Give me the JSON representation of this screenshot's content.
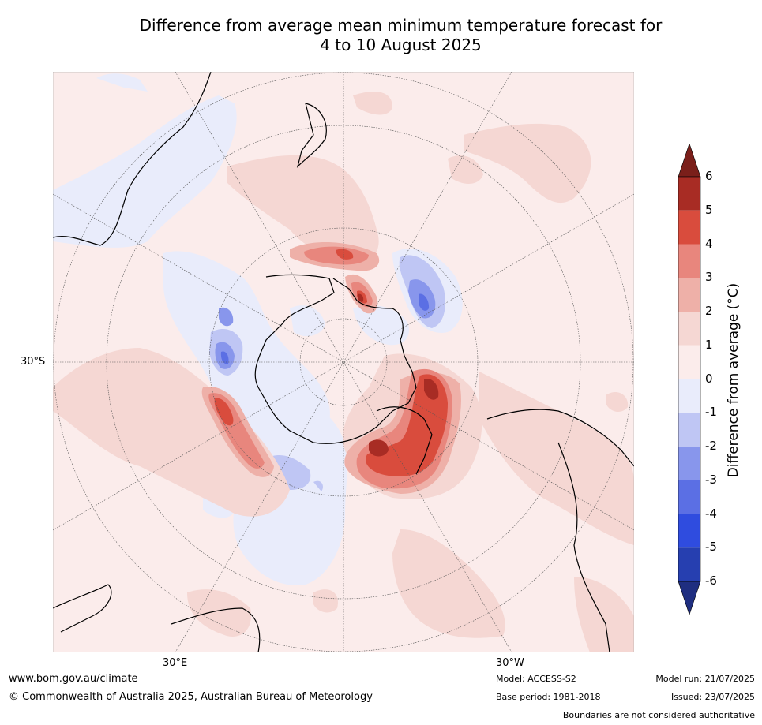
{
  "title_line1": "Difference from average mean minimum temperature forecast for",
  "title_line2": "4 to 10 August 2025",
  "map": {
    "projection": "south-polar stereographic",
    "lat_label": "30°S",
    "lon_labels": [
      "30°E",
      "30°W"
    ]
  },
  "colorbar": {
    "title": "Difference from average (°C)",
    "ticks": [
      "6",
      "5",
      "4",
      "3",
      "2",
      "1",
      "0",
      "-1",
      "-2",
      "-3",
      "-4",
      "-5",
      "-6"
    ],
    "colors_top_to_bottom": [
      "#7a1f1a",
      "#a82c24",
      "#d94c3d",
      "#e8867d",
      "#eeb0a8",
      "#f5d7d3",
      "#fbeceb",
      "#e9ecfb",
      "#bfc6f4",
      "#8896ec",
      "#5b6fe4",
      "#2f4cdf",
      "#263fb0",
      "#1f2e80"
    ]
  },
  "footer": {
    "website": "www.bom.gov.au/climate",
    "copyright": "© Commonwealth of Australia 2025, Australian Bureau of Meteorology",
    "model": "Model: ACCESS-S2",
    "base_period": "Base period: 1981-2018",
    "model_run": "Model run: 21/07/2025",
    "issued": "Issued: 23/07/2025",
    "disclaimer": "Boundaries are not considered authoritative"
  }
}
